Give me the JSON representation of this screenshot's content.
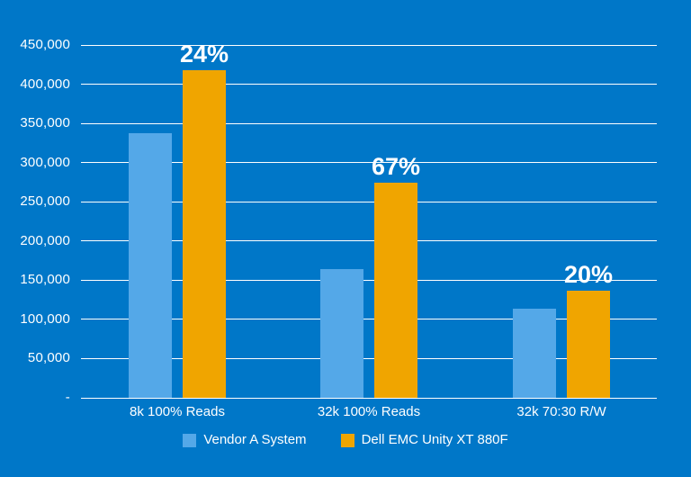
{
  "chart": {
    "background_color": "#0077C8",
    "grid_color": "#FFFFFF",
    "text_color": "#FFFFFF"
  },
  "chart_data": {
    "type": "bar",
    "title": "",
    "xlabel": "",
    "ylabel": "",
    "categories": [
      "8k 100% Reads",
      "32k 100% Reads",
      "32k 70:30 R/W"
    ],
    "series": [
      {
        "name": "Vendor A System",
        "color": "#54A8E8",
        "values": [
          337000,
          164000,
          114000
        ]
      },
      {
        "name": "Dell EMC Unity XT 880F",
        "color": "#F0A500",
        "values": [
          418000,
          274000,
          137000
        ]
      }
    ],
    "bar_labels": {
      "series": "Dell EMC Unity XT 880F",
      "values": [
        "24%",
        "67%",
        "20%"
      ]
    },
    "ylim": [
      0,
      450000
    ],
    "ytick_step": 50000,
    "ytick_labels": [
      "-",
      "50,000",
      "100,000",
      "150,000",
      "200,000",
      "250,000",
      "300,000",
      "350,000",
      "400,000",
      "450,000"
    ],
    "grid": true,
    "legend_position": "bottom"
  }
}
